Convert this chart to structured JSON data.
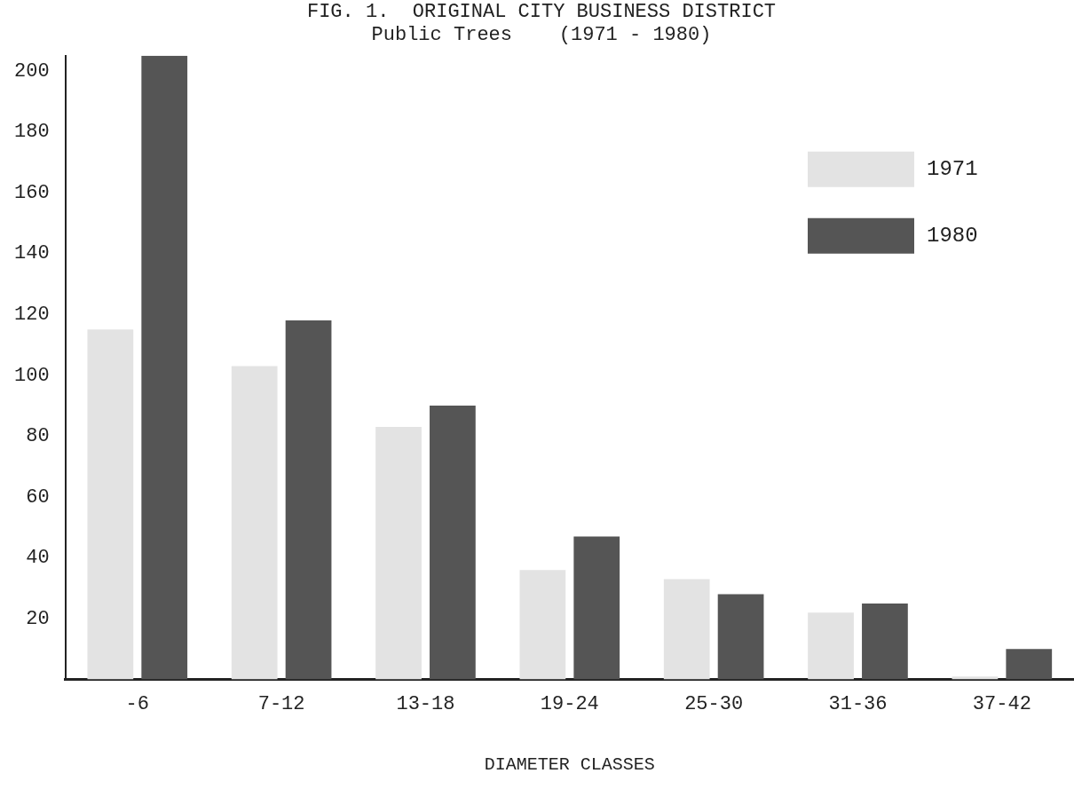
{
  "chart_data": {
    "type": "bar",
    "title": "FIG. 1.  ORIGINAL CITY BUSINESS DISTRICT",
    "subtitle": "Public Trees    (1971 - 1980)",
    "xlabel": "DIAMETER CLASSES",
    "categories": [
      "-6",
      "7-12",
      "13-18",
      "19-24",
      "25-30",
      "31-36",
      "37-42"
    ],
    "series": [
      {
        "name": "1971",
        "color": "#e3e3e3",
        "values": [
          115,
          103,
          83,
          36,
          33,
          22,
          1
        ]
      },
      {
        "name": "1980",
        "color": "#555555",
        "values": [
          205,
          118,
          90,
          47,
          28,
          25,
          10
        ]
      }
    ],
    "ylim": [
      0,
      205
    ],
    "yticks": [
      20,
      40,
      60,
      80,
      100,
      120,
      140,
      160,
      180,
      200
    ],
    "grid": false,
    "legend": "top right"
  }
}
